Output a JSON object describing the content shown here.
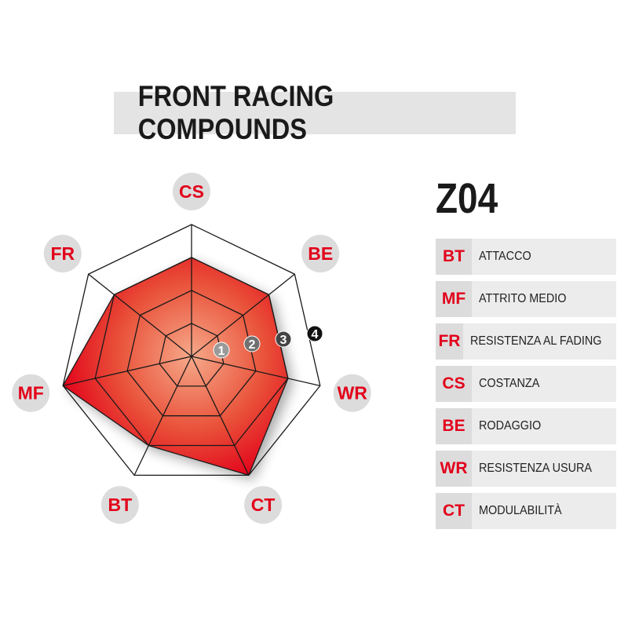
{
  "title": "FRONT RACING COMPOUNDS",
  "compound": "Z04",
  "legend": [
    {
      "code": "BT",
      "label": "ATTACCO"
    },
    {
      "code": "MF",
      "label": "ATTRITO MEDIO"
    },
    {
      "code": "FR",
      "label": "RESISTENZA AL FADING"
    },
    {
      "code": "CS",
      "label": "COSTANZA"
    },
    {
      "code": "BE",
      "label": "RODAGGIO"
    },
    {
      "code": "WR",
      "label": "RESISTENZA USURA"
    },
    {
      "code": "CT",
      "label": "MODULABILITÀ"
    }
  ],
  "chart_data": {
    "type": "radar",
    "categories": [
      "CS",
      "BE",
      "WR",
      "CT",
      "BT",
      "MF",
      "FR"
    ],
    "values": [
      3,
      3,
      3,
      4,
      3,
      4,
      3
    ],
    "rlim": [
      0,
      4
    ],
    "scale_labels": [
      "1",
      "2",
      "3",
      "4"
    ],
    "colors": {
      "fill": "#e2001a",
      "label": "#e2001a",
      "label_bg": "#dcdcdc"
    }
  }
}
